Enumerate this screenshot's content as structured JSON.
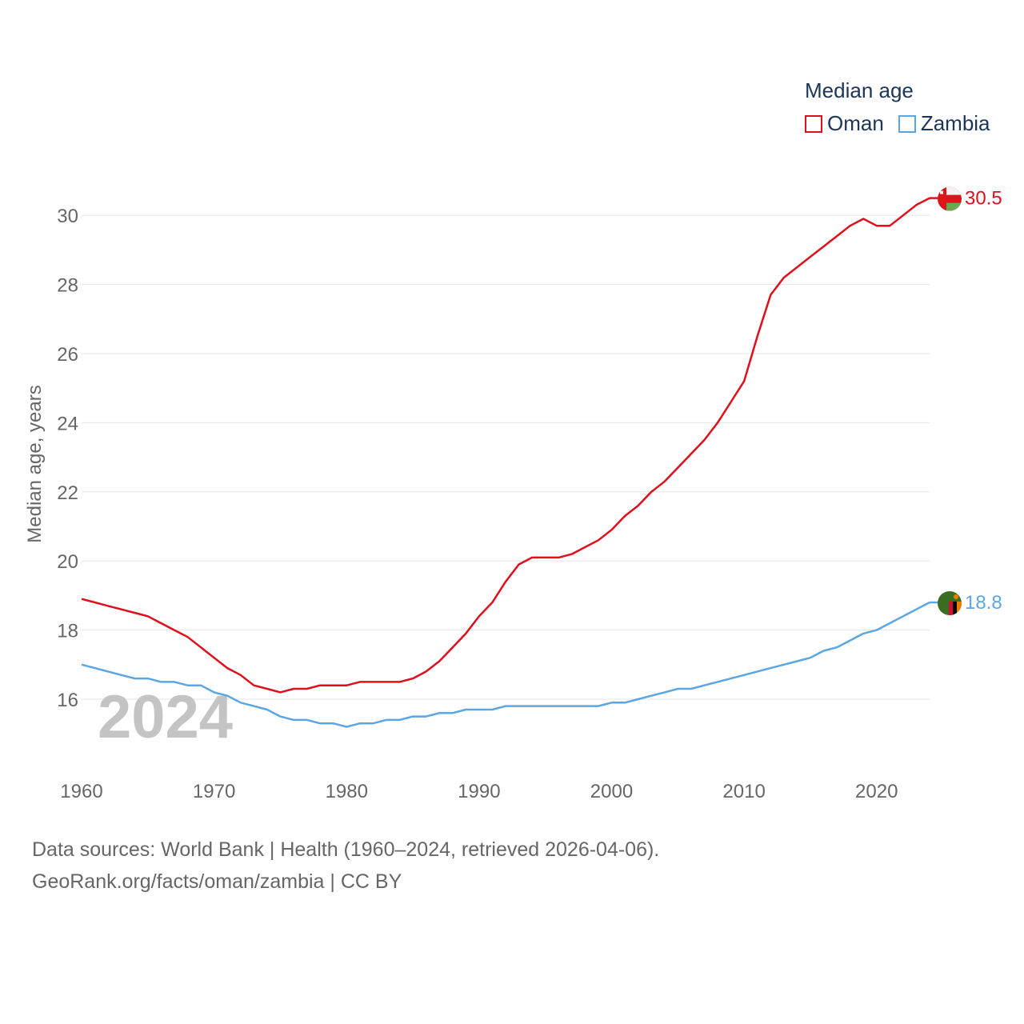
{
  "legend": {
    "title": "Median age",
    "items": [
      {
        "label": "Oman",
        "color": "#e00f1c"
      },
      {
        "label": "Zambia",
        "color": "#5ba6e4"
      }
    ]
  },
  "year_watermark": "2024",
  "footer": {
    "line1": "Data sources: World Bank | Health (1960–2024, retrieved 2026-04-06).",
    "line2": "GeoRank.org/facts/oman/zambia | CC BY"
  },
  "chart_data": {
    "type": "line",
    "title": "Median age",
    "xlabel": "",
    "ylabel": "Median age, years",
    "xlim": [
      1960,
      2024
    ],
    "ylim": [
      14.5,
      31.0
    ],
    "yticks": [
      16,
      18,
      20,
      22,
      24,
      26,
      28,
      30
    ],
    "xticks": [
      1960,
      1970,
      1980,
      1990,
      2000,
      2010,
      2020
    ],
    "grid": true,
    "legend_position": "top-right",
    "x": [
      1960,
      1961,
      1962,
      1963,
      1964,
      1965,
      1966,
      1967,
      1968,
      1969,
      1970,
      1971,
      1972,
      1973,
      1974,
      1975,
      1976,
      1977,
      1978,
      1979,
      1980,
      1981,
      1982,
      1983,
      1984,
      1985,
      1986,
      1987,
      1988,
      1989,
      1990,
      1991,
      1992,
      1993,
      1994,
      1995,
      1996,
      1997,
      1998,
      1999,
      2000,
      2001,
      2002,
      2003,
      2004,
      2005,
      2006,
      2007,
      2008,
      2009,
      2010,
      2011,
      2012,
      2013,
      2014,
      2015,
      2016,
      2017,
      2018,
      2019,
      2020,
      2021,
      2022,
      2023,
      2024
    ],
    "series": [
      {
        "name": "Oman",
        "color": "#e00f1c",
        "end_label": "30.5",
        "values": [
          18.9,
          18.8,
          18.7,
          18.6,
          18.5,
          18.4,
          18.2,
          18.0,
          17.8,
          17.5,
          17.2,
          16.9,
          16.7,
          16.4,
          16.3,
          16.2,
          16.3,
          16.3,
          16.4,
          16.4,
          16.4,
          16.5,
          16.5,
          16.5,
          16.5,
          16.6,
          16.8,
          17.1,
          17.5,
          17.9,
          18.4,
          18.8,
          19.4,
          19.9,
          20.1,
          20.1,
          20.1,
          20.2,
          20.4,
          20.6,
          20.9,
          21.3,
          21.6,
          22.0,
          22.3,
          22.7,
          23.1,
          23.5,
          24.0,
          24.6,
          25.2,
          26.5,
          27.7,
          28.2,
          28.5,
          28.8,
          29.1,
          29.4,
          29.7,
          29.9,
          29.7,
          29.7,
          30.0,
          30.3,
          30.5
        ]
      },
      {
        "name": "Zambia",
        "color": "#5ba6e4",
        "end_label": "18.8",
        "values": [
          17.0,
          16.9,
          16.8,
          16.7,
          16.6,
          16.6,
          16.5,
          16.5,
          16.4,
          16.4,
          16.2,
          16.1,
          15.9,
          15.8,
          15.7,
          15.5,
          15.4,
          15.4,
          15.3,
          15.3,
          15.2,
          15.3,
          15.3,
          15.4,
          15.4,
          15.5,
          15.5,
          15.6,
          15.6,
          15.7,
          15.7,
          15.7,
          15.8,
          15.8,
          15.8,
          15.8,
          15.8,
          15.8,
          15.8,
          15.8,
          15.9,
          15.9,
          16.0,
          16.1,
          16.2,
          16.3,
          16.3,
          16.4,
          16.5,
          16.6,
          16.7,
          16.8,
          16.9,
          17.0,
          17.1,
          17.2,
          17.4,
          17.5,
          17.7,
          17.9,
          18.0,
          18.2,
          18.4,
          18.6,
          18.8
        ]
      }
    ]
  }
}
